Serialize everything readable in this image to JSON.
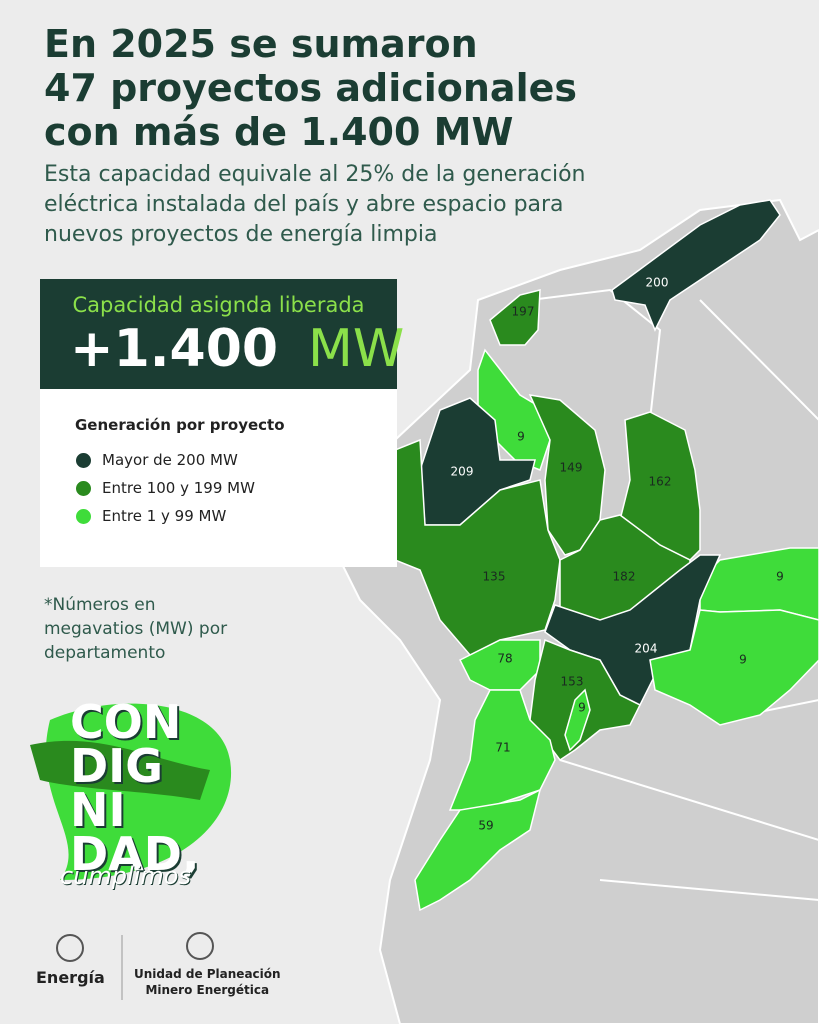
{
  "header": {
    "title_lines": [
      "En 2025 se sumaron",
      "47 proyectos adicionales",
      "con más de 1.400 MW"
    ],
    "subtitle_lines": [
      "Esta capacidad equivale al 25% de la generación",
      "eléctrica instalada del país y abre espacio para",
      "nuevos proyectos de energía limpia"
    ]
  },
  "capacity_box": {
    "label": "Capacidad asignda liberada",
    "amount": "+1.400",
    "unit": "MW"
  },
  "legend": {
    "title": "Generación por proyecto",
    "items": [
      {
        "label": "Mayor de 200 MW",
        "color": "#1b3d33"
      },
      {
        "label": "Entre 100 y 199 MW",
        "color": "#2a8a1e"
      },
      {
        "label": "Entre 1 y 99 MW",
        "color": "#3fdc3a"
      }
    ]
  },
  "note_lines": [
    "*Números en",
    "megavatios (MW) por",
    "departamento"
  ],
  "logo": {
    "lines": [
      "CON",
      "DIG",
      "NI",
      "DAD,"
    ],
    "tagline": "cumplimos"
  },
  "footer": {
    "ministry": "Energía",
    "unit_lines": [
      "Unidad de Planeación",
      "Minero Energética"
    ]
  },
  "map": {
    "regions": [
      {
        "label": 200,
        "level": 0
      },
      {
        "label": 197,
        "level": 1
      },
      {
        "label": 9,
        "level": 2
      },
      {
        "label": 209,
        "level": 0
      },
      {
        "label": 149,
        "level": 1
      },
      {
        "label": 162,
        "level": 1
      },
      {
        "label": 135,
        "level": 1
      },
      {
        "label": 182,
        "level": 1
      },
      {
        "label": 9,
        "level": 2
      },
      {
        "label": 204,
        "level": 0
      },
      {
        "label": 9,
        "level": 2
      },
      {
        "label": 78,
        "level": 2
      },
      {
        "label": 153,
        "level": 1
      },
      {
        "label": 9,
        "level": 2
      },
      {
        "label": 71,
        "level": 2
      },
      {
        "label": 59,
        "level": 2
      }
    ]
  }
}
